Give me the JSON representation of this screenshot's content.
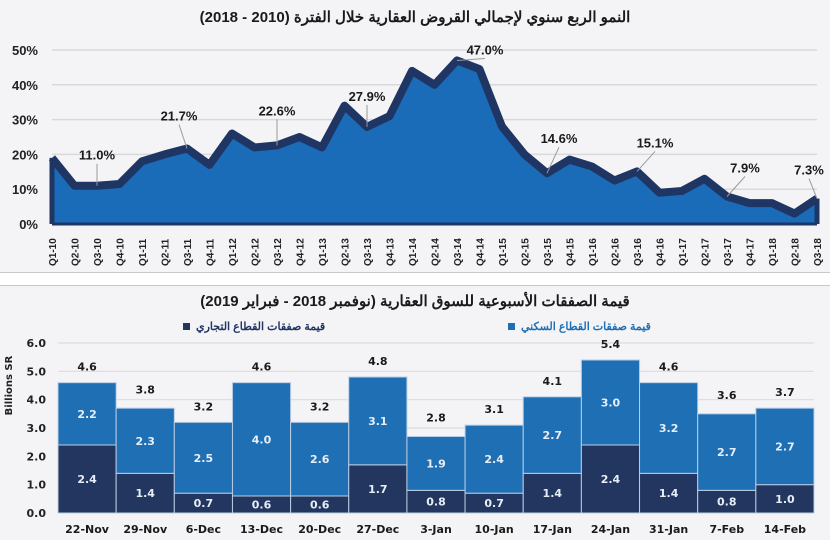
{
  "chart_data": [
    {
      "type": "area",
      "title": "النمو الربع سنوي لإجمالي القروض العقارية خلال الفترة (2010 - 2018)",
      "xlabel": "",
      "ylabel": "",
      "ylim": [
        0,
        50
      ],
      "yticks": [
        "0%",
        "10%",
        "20%",
        "30%",
        "40%",
        "50%"
      ],
      "ytick_values": [
        0,
        10,
        20,
        30,
        40,
        50
      ],
      "grid": true,
      "categories": [
        "Q1-10",
        "Q2-10",
        "Q3-10",
        "Q4-10",
        "Q1-11",
        "Q2-11",
        "Q3-11",
        "Q4-11",
        "Q1-12",
        "Q2-12",
        "Q3-12",
        "Q4-12",
        "Q1-13",
        "Q2-13",
        "Q3-13",
        "Q4-13",
        "Q1-14",
        "Q2-14",
        "Q3-14",
        "Q4-14",
        "Q1-15",
        "Q2-15",
        "Q3-15",
        "Q4-15",
        "Q1-16",
        "Q2-16",
        "Q3-16",
        "Q4-16",
        "Q1-17",
        "Q2-17",
        "Q3-17",
        "Q4-17",
        "Q1-18",
        "Q2-18",
        "Q3-18"
      ],
      "values": [
        19,
        11,
        11.0,
        11.5,
        18,
        20,
        21.7,
        17,
        26,
        22,
        22.6,
        25,
        22,
        34,
        27.9,
        31,
        44,
        40,
        47.0,
        44.5,
        28,
        20,
        14.6,
        18.5,
        16.5,
        12.5,
        15.1,
        9,
        9.5,
        13,
        7.9,
        6,
        6,
        3,
        7.3
      ],
      "annotations": [
        {
          "category": "Q3-10",
          "label": "11.0%"
        },
        {
          "category": "Q3-11",
          "label": "21.7%"
        },
        {
          "category": "Q3-12",
          "label": "22.6%"
        },
        {
          "category": "Q3-13",
          "label": "27.9%"
        },
        {
          "category": "Q3-14",
          "label": "47.0%"
        },
        {
          "category": "Q3-15",
          "label": "14.6%"
        },
        {
          "category": "Q3-16",
          "label": "15.1%"
        },
        {
          "category": "Q3-17",
          "label": "7.9%"
        },
        {
          "category": "Q3-18",
          "label": "7.3%"
        }
      ],
      "colors": {
        "fill": "#1a6cb8",
        "line": "#1f3564"
      }
    },
    {
      "type": "bar",
      "stacked": true,
      "title": "قيمة الصفقات الأسبوعية للسوق العقارية (نوفمبر 2018 - فبراير 2019)",
      "xlabel": "",
      "ylabel": "Billions SR",
      "ylim": [
        0,
        6
      ],
      "yticks": [
        "0.0",
        "1.0",
        "2.0",
        "3.0",
        "4.0",
        "5.0",
        "6.0"
      ],
      "ytick_values": [
        0,
        1,
        2,
        3,
        4,
        5,
        6
      ],
      "grid": true,
      "legend_position": "top",
      "categories": [
        "22-Nov",
        "29-Nov",
        "6-Dec",
        "13-Dec",
        "20-Dec",
        "27-Dec",
        "3-Jan",
        "10-Jan",
        "17-Jan",
        "24-Jan",
        "31-Jan",
        "7-Feb",
        "14-Feb"
      ],
      "series": [
        {
          "name": "قيمة صفقات القطاع التجاري",
          "color": "#22365f",
          "values": [
            2.4,
            1.4,
            0.7,
            0.6,
            0.6,
            1.7,
            0.8,
            0.7,
            1.4,
            2.4,
            1.4,
            0.8,
            1.0
          ]
        },
        {
          "name": "قيمة صفقات القطاع السكني",
          "color": "#1f6fb5",
          "values": [
            2.2,
            2.3,
            2.5,
            4.0,
            2.6,
            3.1,
            1.9,
            2.4,
            2.7,
            3.0,
            3.2,
            2.7,
            2.7
          ]
        }
      ],
      "totals": [
        4.6,
        3.8,
        3.2,
        4.6,
        3.2,
        4.8,
        2.8,
        3.1,
        4.1,
        5.4,
        4.6,
        3.6,
        3.7
      ]
    }
  ]
}
